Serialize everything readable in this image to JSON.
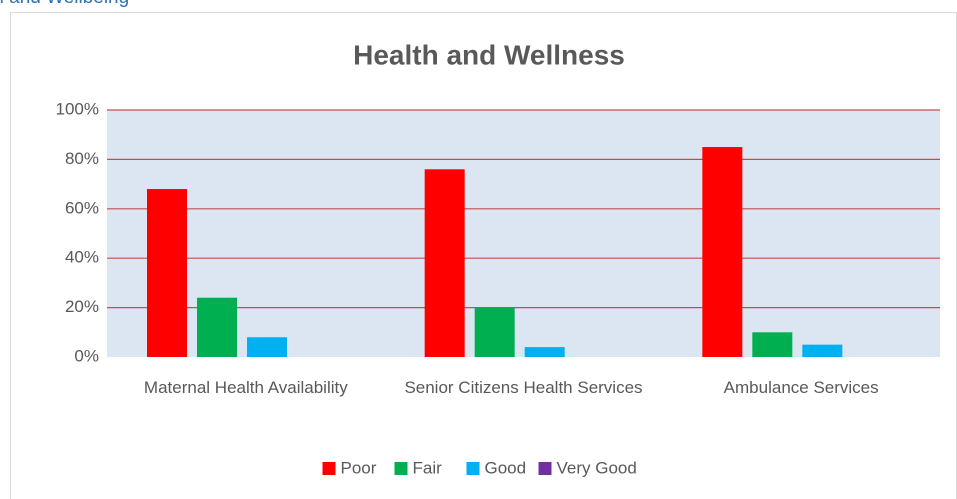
{
  "heading": "th and Wellbeing",
  "chart_data": {
    "type": "bar",
    "title": "Health and Wellness",
    "categories": [
      "Maternal Health Availability",
      "Senior Citizens Health Services",
      "Ambulance Services"
    ],
    "series": [
      {
        "name": "Poor",
        "color": "#ff0000",
        "values": [
          68,
          76,
          85
        ]
      },
      {
        "name": "Fair",
        "color": "#00b050",
        "values": [
          24,
          20,
          10
        ]
      },
      {
        "name": "Good",
        "color": "#00b0f0",
        "values": [
          8,
          4,
          5
        ]
      },
      {
        "name": "Very Good",
        "color": "#7030a0",
        "values": [
          0,
          0,
          0
        ]
      }
    ],
    "ylim": [
      0,
      100
    ],
    "yticks": [
      {
        "value": 0,
        "label": "0%"
      },
      {
        "value": 20,
        "label": "20%"
      },
      {
        "value": 40,
        "label": "40%"
      },
      {
        "value": 60,
        "label": "60%"
      },
      {
        "value": 80,
        "label": "80%"
      },
      {
        "value": 100,
        "label": "100%"
      }
    ],
    "grid": true,
    "legend": "bottom"
  }
}
